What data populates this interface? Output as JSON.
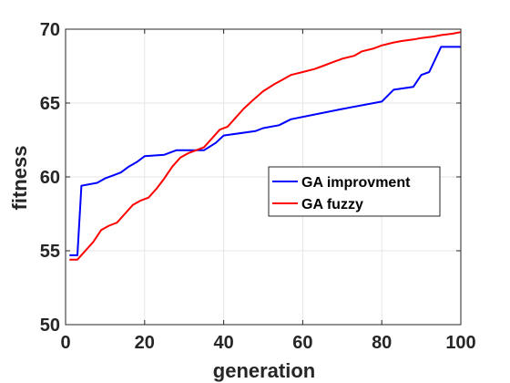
{
  "chart_data": {
    "type": "line",
    "xlabel": "generation",
    "ylabel": "fitness",
    "xlim": [
      0,
      100
    ],
    "ylim": [
      50,
      70
    ],
    "xticks": [
      0,
      20,
      40,
      60,
      80,
      100
    ],
    "yticks": [
      50,
      55,
      60,
      65,
      70
    ],
    "x_tick_labels": [
      "0",
      "20",
      "40",
      "60",
      "80",
      "100"
    ],
    "y_tick_labels": [
      "50",
      "55",
      "60",
      "65",
      "70"
    ],
    "grid": true,
    "legend_position": "center-right",
    "series": [
      {
        "name": "GA improvment",
        "color": "#0000ff",
        "x": [
          1,
          3,
          4,
          8,
          10,
          12,
          14,
          16,
          18,
          20,
          25,
          28,
          35,
          38,
          40,
          48,
          50,
          54,
          57,
          70,
          80,
          83,
          88,
          90,
          92,
          95,
          100
        ],
        "y": [
          54.7,
          54.7,
          59.4,
          59.6,
          59.9,
          60.1,
          60.3,
          60.7,
          61.0,
          61.4,
          61.5,
          61.8,
          61.8,
          62.3,
          62.8,
          63.1,
          63.3,
          63.5,
          63.9,
          64.6,
          65.1,
          65.9,
          66.1,
          66.9,
          67.1,
          68.8,
          68.8
        ]
      },
      {
        "name": "GA fuzzy",
        "color": "#ff0000",
        "x": [
          1,
          3,
          5,
          7,
          9,
          11,
          13,
          15,
          17,
          19,
          21,
          23,
          25,
          27,
          29,
          31,
          33,
          35,
          37,
          39,
          41,
          43,
          45,
          47,
          50,
          53,
          55,
          57,
          60,
          63,
          65,
          68,
          70,
          73,
          75,
          78,
          80,
          83,
          85,
          88,
          90,
          93,
          95,
          98,
          100
        ],
        "y": [
          54.4,
          54.4,
          55.0,
          55.6,
          56.4,
          56.7,
          56.9,
          57.5,
          58.1,
          58.4,
          58.6,
          59.2,
          59.9,
          60.7,
          61.3,
          61.6,
          61.8,
          62.0,
          62.6,
          63.2,
          63.4,
          64.0,
          64.6,
          65.1,
          65.8,
          66.3,
          66.6,
          66.9,
          67.1,
          67.3,
          67.5,
          67.8,
          68.0,
          68.2,
          68.5,
          68.7,
          68.9,
          69.1,
          69.2,
          69.3,
          69.4,
          69.5,
          69.6,
          69.7,
          69.8
        ]
      }
    ]
  }
}
